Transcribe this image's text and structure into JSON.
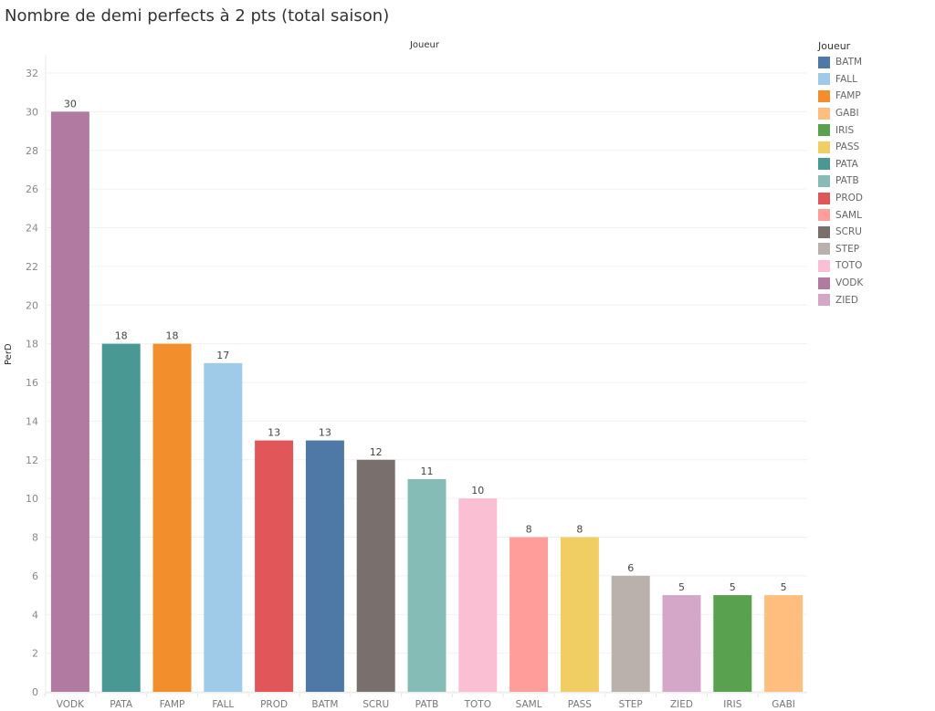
{
  "chart_data": {
    "type": "bar",
    "title": "Nombre de demi perfects à 2 pts (total saison)",
    "column_header": "Joueur",
    "xlabel": "",
    "ylabel": "PerD",
    "ylim": [
      0,
      32
    ],
    "yticks": [
      0,
      2,
      4,
      6,
      8,
      10,
      12,
      14,
      16,
      18,
      20,
      22,
      24,
      26,
      28,
      30,
      32
    ],
    "grid": true,
    "legend_position": "right",
    "categories": [
      "VODK",
      "PATA",
      "FAMP",
      "FALL",
      "PROD",
      "BATM",
      "SCRU",
      "PATB",
      "TOTO",
      "SAML",
      "PASS",
      "STEP",
      "ZIED",
      "IRIS",
      "GABI"
    ],
    "values": [
      30,
      18,
      18,
      17,
      13,
      13,
      12,
      11,
      10,
      8,
      8,
      6,
      5,
      5,
      5
    ],
    "legend": {
      "title": "Joueur",
      "items": [
        {
          "label": "BATM",
          "color": "#4e79a7"
        },
        {
          "label": "FALL",
          "color": "#a0cbe8"
        },
        {
          "label": "FAMP",
          "color": "#f28e2b"
        },
        {
          "label": "GABI",
          "color": "#ffbe7d"
        },
        {
          "label": "IRIS",
          "color": "#59a14f"
        },
        {
          "label": "PASS",
          "color": "#f1ce63"
        },
        {
          "label": "PATA",
          "color": "#499894"
        },
        {
          "label": "PATB",
          "color": "#86bcb6"
        },
        {
          "label": "PROD",
          "color": "#e15759"
        },
        {
          "label": "SAML",
          "color": "#ff9d9a"
        },
        {
          "label": "SCRU",
          "color": "#79706e"
        },
        {
          "label": "STEP",
          "color": "#bab0ac"
        },
        {
          "label": "TOTO",
          "color": "#fabfd2"
        },
        {
          "label": "VODK",
          "color": "#b07aa1"
        },
        {
          "label": "ZIED",
          "color": "#d4a6c8"
        }
      ]
    }
  }
}
